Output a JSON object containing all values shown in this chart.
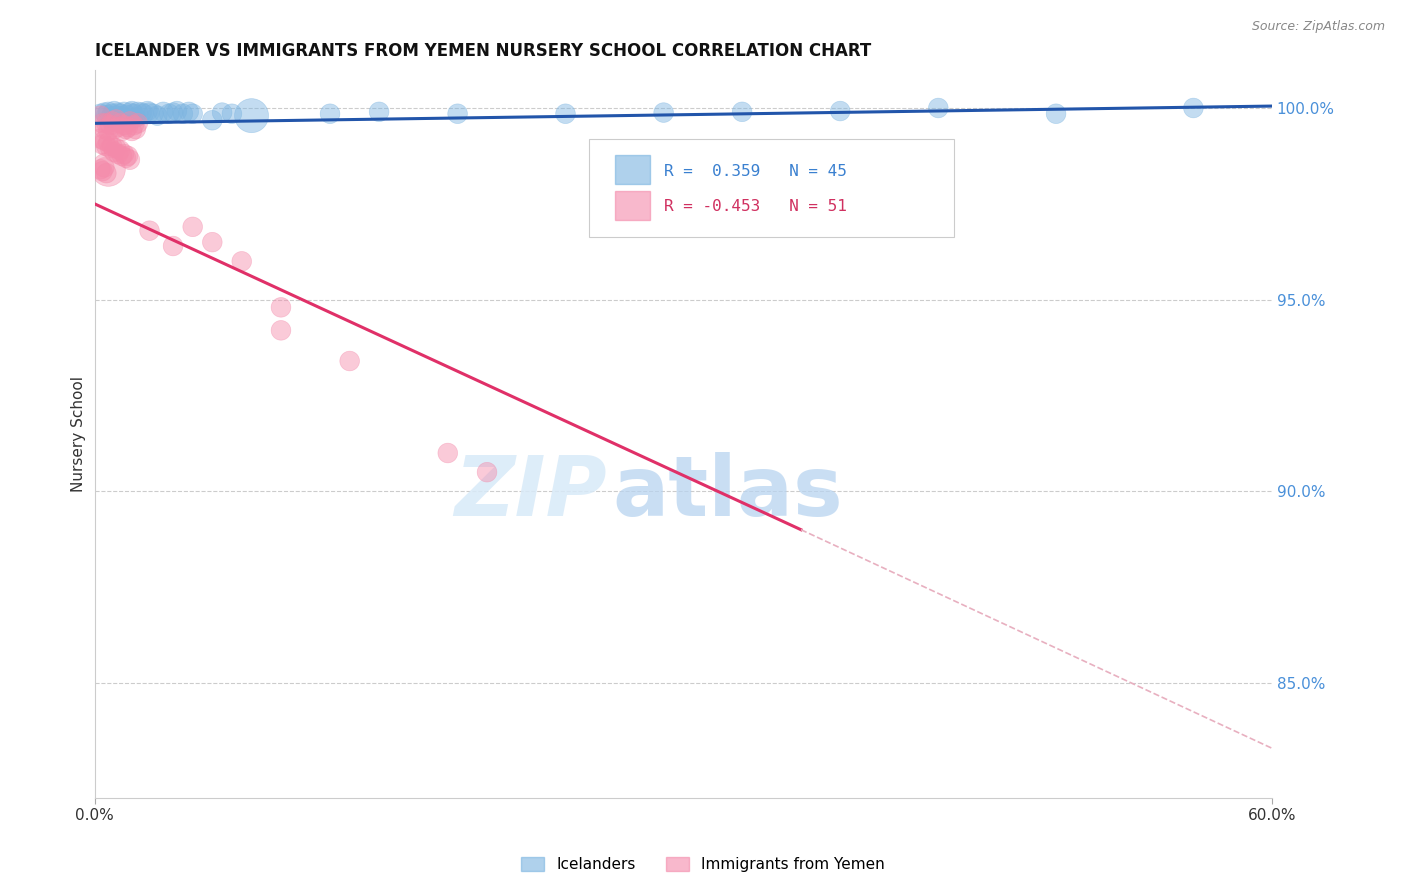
{
  "title": "ICELANDER VS IMMIGRANTS FROM YEMEN NURSERY SCHOOL CORRELATION CHART",
  "source": "Source: ZipAtlas.com",
  "ylabel": "Nursery School",
  "ytick_labels": [
    "100.0%",
    "95.0%",
    "90.0%",
    "85.0%"
  ],
  "ytick_values": [
    1.0,
    0.95,
    0.9,
    0.85
  ],
  "xmin": 0.0,
  "xmax": 0.6,
  "ymin": 0.82,
  "ymax": 1.01,
  "R_blue": 0.359,
  "N_blue": 45,
  "R_pink": -0.453,
  "N_pink": 51,
  "legend_label_blue": "Icelanders",
  "legend_label_pink": "Immigrants from Yemen",
  "blue_color": "#7ab3e0",
  "pink_color": "#f48aaa",
  "trendline_blue_color": "#2255aa",
  "trendline_pink_color": "#e03068",
  "trendline_ext_color": "#e8b0c0",
  "watermark_zip": "ZIP",
  "watermark_atlas": "atlas",
  "title_fontsize": 12,
  "source_fontsize": 9,
  "blue_dots": [
    [
      0.003,
      0.9985
    ],
    [
      0.005,
      0.9988
    ],
    [
      0.006,
      0.9982
    ],
    [
      0.007,
      0.999
    ],
    [
      0.008,
      0.9975
    ],
    [
      0.009,
      0.9985
    ],
    [
      0.01,
      0.9992
    ],
    [
      0.011,
      0.998
    ],
    [
      0.012,
      0.9988
    ],
    [
      0.013,
      0.9985
    ],
    [
      0.014,
      0.9978
    ],
    [
      0.015,
      0.999
    ],
    [
      0.016,
      0.9982
    ],
    [
      0.018,
      0.9988
    ],
    [
      0.019,
      0.9992
    ],
    [
      0.02,
      0.9985
    ],
    [
      0.021,
      0.9975
    ],
    [
      0.022,
      0.999
    ],
    [
      0.024,
      0.9988
    ],
    [
      0.025,
      0.9985
    ],
    [
      0.027,
      0.9992
    ],
    [
      0.028,
      0.9988
    ],
    [
      0.03,
      0.9985
    ],
    [
      0.032,
      0.998
    ],
    [
      0.035,
      0.999
    ],
    [
      0.038,
      0.9985
    ],
    [
      0.04,
      0.9988
    ],
    [
      0.042,
      0.9992
    ],
    [
      0.045,
      0.9985
    ],
    [
      0.048,
      0.999
    ],
    [
      0.05,
      0.9985
    ],
    [
      0.06,
      0.9968
    ],
    [
      0.065,
      0.9988
    ],
    [
      0.07,
      0.9985
    ],
    [
      0.08,
      0.998
    ],
    [
      0.12,
      0.9985
    ],
    [
      0.145,
      0.999
    ],
    [
      0.185,
      0.9985
    ],
    [
      0.24,
      0.9985
    ],
    [
      0.29,
      0.9988
    ],
    [
      0.33,
      0.999
    ],
    [
      0.38,
      0.9992
    ],
    [
      0.43,
      1.0
    ],
    [
      0.49,
      0.9985
    ],
    [
      0.56,
      1.0
    ]
  ],
  "blue_sizes": [
    200,
    200,
    200,
    200,
    200,
    200,
    200,
    200,
    200,
    200,
    200,
    200,
    200,
    200,
    200,
    200,
    200,
    200,
    200,
    200,
    200,
    200,
    200,
    200,
    200,
    200,
    200,
    200,
    200,
    200,
    200,
    200,
    200,
    200,
    600,
    200,
    200,
    200,
    200,
    200,
    200,
    200,
    200,
    200,
    200
  ],
  "pink_dots": [
    [
      0.003,
      0.998
    ],
    [
      0.004,
      0.996
    ],
    [
      0.005,
      0.9945
    ],
    [
      0.006,
      0.996
    ],
    [
      0.007,
      0.994
    ],
    [
      0.008,
      0.9955
    ],
    [
      0.009,
      0.9965
    ],
    [
      0.01,
      0.9945
    ],
    [
      0.011,
      0.997
    ],
    [
      0.012,
      0.995
    ],
    [
      0.013,
      0.996
    ],
    [
      0.014,
      0.994
    ],
    [
      0.015,
      0.9955
    ],
    [
      0.016,
      0.9945
    ],
    [
      0.017,
      0.995
    ],
    [
      0.018,
      0.9965
    ],
    [
      0.019,
      0.994
    ],
    [
      0.02,
      0.9955
    ],
    [
      0.021,
      0.9945
    ],
    [
      0.022,
      0.996
    ],
    [
      0.003,
      0.992
    ],
    [
      0.004,
      0.9905
    ],
    [
      0.005,
      0.9915
    ],
    [
      0.006,
      0.99
    ],
    [
      0.007,
      0.991
    ],
    [
      0.008,
      0.9895
    ],
    [
      0.009,
      0.99
    ],
    [
      0.01,
      0.9885
    ],
    [
      0.011,
      0.9895
    ],
    [
      0.012,
      0.988
    ],
    [
      0.013,
      0.989
    ],
    [
      0.014,
      0.9875
    ],
    [
      0.015,
      0.988
    ],
    [
      0.016,
      0.987
    ],
    [
      0.017,
      0.9875
    ],
    [
      0.018,
      0.9865
    ],
    [
      0.003,
      0.984
    ],
    [
      0.004,
      0.9835
    ],
    [
      0.005,
      0.9845
    ],
    [
      0.006,
      0.983
    ],
    [
      0.05,
      0.969
    ],
    [
      0.007,
      0.984
    ],
    [
      0.028,
      0.968
    ],
    [
      0.04,
      0.964
    ],
    [
      0.06,
      0.965
    ],
    [
      0.075,
      0.96
    ],
    [
      0.095,
      0.948
    ],
    [
      0.095,
      0.942
    ],
    [
      0.13,
      0.934
    ],
    [
      0.18,
      0.91
    ],
    [
      0.2,
      0.905
    ]
  ],
  "pink_sizes": [
    200,
    200,
    200,
    200,
    200,
    200,
    200,
    200,
    200,
    200,
    200,
    200,
    200,
    200,
    200,
    200,
    200,
    200,
    200,
    200,
    200,
    200,
    200,
    200,
    200,
    200,
    200,
    200,
    200,
    200,
    200,
    200,
    200,
    200,
    200,
    200,
    200,
    200,
    200,
    200,
    200,
    600,
    200,
    200,
    200,
    200,
    200,
    200,
    200,
    200,
    200
  ],
  "blue_trendline": [
    [
      0.0,
      0.996
    ],
    [
      0.6,
      1.0005
    ]
  ],
  "pink_trendline_solid": [
    [
      0.0,
      0.975
    ],
    [
      0.36,
      0.89
    ]
  ],
  "pink_trendline_dashed": [
    [
      0.36,
      0.89
    ],
    [
      0.6,
      0.833
    ]
  ]
}
